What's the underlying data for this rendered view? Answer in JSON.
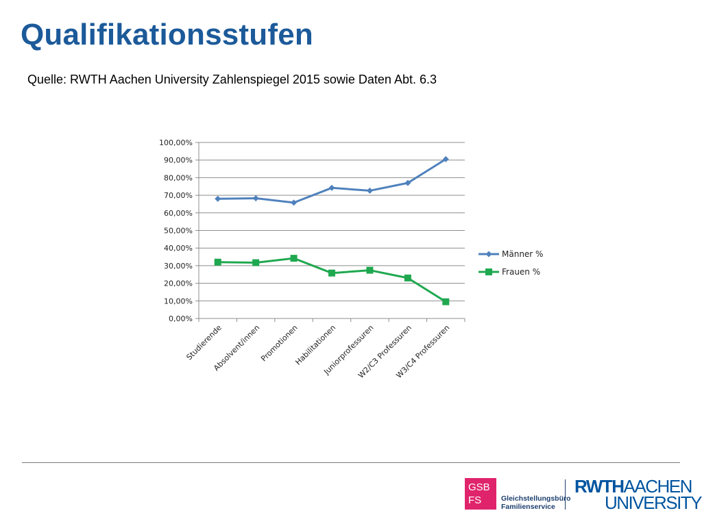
{
  "slide": {
    "title": "Qualifikationsstufen",
    "source": "Quelle: RWTH Aachen University Zahlenspiegel 2015 sowie Daten Abt. 6.3"
  },
  "chart_data": {
    "type": "line",
    "categories": [
      "Studierende",
      "Absolvent/innen",
      "Promotionen",
      "Habilitationen",
      "Juniorprofessuren",
      "W2/C3 Professuren",
      "W3/C4 Professuren"
    ],
    "series": [
      {
        "name": "Männer %",
        "values": [
          68.0,
          68.3,
          65.8,
          74.2,
          72.6,
          77.0,
          90.5
        ],
        "color": "#4f81bd",
        "marker": "diamond"
      },
      {
        "name": "Frauen %",
        "values": [
          32.0,
          31.7,
          34.2,
          25.8,
          27.4,
          23.0,
          9.5
        ],
        "color": "#1fa84f",
        "marker": "square"
      }
    ],
    "yticks": [
      "0,00%",
      "10,00%",
      "20,00%",
      "30,00%",
      "40,00%",
      "50,00%",
      "60,00%",
      "70,00%",
      "80,00%",
      "90,00%",
      "100,00%"
    ],
    "ylim": [
      0,
      100
    ],
    "grid": true,
    "legend_position": "right"
  },
  "footer": {
    "gsb_line1": "GSB",
    "gsb_line2": "FS",
    "gsb_text_line1": "Gleichstellungsbüro",
    "gsb_text_line2": "Familienservice",
    "rwth_line1a": "RWTH",
    "rwth_line1b": "AACHEN",
    "rwth_line2": "UNIVERSITY"
  }
}
